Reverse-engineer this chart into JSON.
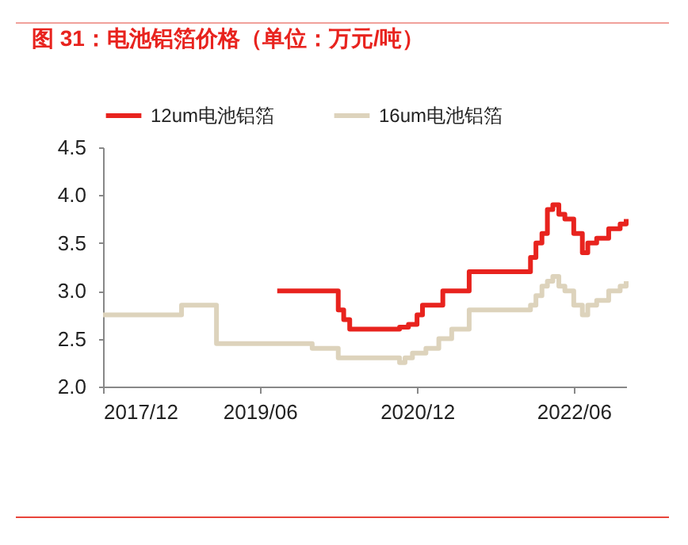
{
  "chart_data": {
    "type": "step",
    "title": "图 31：电池铝箔价格（单位：万元/吨）",
    "series": [
      {
        "name": "12um电池铝箔",
        "color": "#e8231e",
        "x": [
          "2019-08-01",
          "2020-03-01",
          "2020-03-20",
          "2020-04-10",
          "2020-10-01",
          "2020-11-01",
          "2020-12-01",
          "2020-12-20",
          "2021-03-01",
          "2021-06-01",
          "2022-01-01",
          "2022-01-20",
          "2022-02-10",
          "2022-03-01",
          "2022-03-20",
          "2022-04-10",
          "2022-05-01",
          "2022-06-01",
          "2022-07-01",
          "2022-07-20",
          "2022-08-20",
          "2022-10-01",
          "2022-11-10",
          "2022-12-01"
        ],
        "values": [
          3.0,
          2.8,
          2.7,
          2.6,
          2.62,
          2.65,
          2.75,
          2.85,
          3.0,
          3.2,
          3.35,
          3.5,
          3.6,
          3.85,
          3.9,
          3.8,
          3.75,
          3.6,
          3.4,
          3.5,
          3.55,
          3.65,
          3.7,
          3.75
        ]
      },
      {
        "name": "16um电池铝箔",
        "color": "#ddd3bc",
        "x": [
          "2017-12-01",
          "2018-09-01",
          "2019-01-01",
          "2019-12-01",
          "2020-03-01",
          "2020-10-01",
          "2020-10-20",
          "2020-11-15",
          "2021-01-01",
          "2021-02-15",
          "2021-04-01",
          "2021-06-01",
          "2022-01-01",
          "2022-01-20",
          "2022-02-10",
          "2022-03-01",
          "2022-03-20",
          "2022-04-10",
          "2022-05-01",
          "2022-06-01",
          "2022-07-01",
          "2022-07-20",
          "2022-08-20",
          "2022-10-01",
          "2022-11-10",
          "2022-12-01"
        ],
        "values": [
          2.75,
          2.85,
          2.45,
          2.4,
          2.3,
          2.25,
          2.3,
          2.35,
          2.4,
          2.5,
          2.6,
          2.8,
          2.85,
          2.95,
          3.05,
          3.1,
          3.15,
          3.05,
          3.0,
          2.85,
          2.75,
          2.85,
          2.9,
          3.0,
          3.05,
          3.1
        ]
      }
    ],
    "xlim": [
      "2017-12",
      "2022-12"
    ],
    "xticks": [
      {
        "value": "2017-12",
        "label": "2017/12"
      },
      {
        "value": "2019-06",
        "label": "2019/06"
      },
      {
        "value": "2020-12",
        "label": "2020/12"
      },
      {
        "value": "2022-06",
        "label": "2022/06"
      }
    ],
    "ylim": [
      2.0,
      4.5
    ],
    "yticks": [
      {
        "value": 2,
        "label": "2.0"
      },
      2.5,
      {
        "value": 3,
        "label": "3.0"
      },
      3.5,
      {
        "value": 4,
        "label": "4.0"
      },
      4.5
    ],
    "legend": "top",
    "grid": false
  }
}
